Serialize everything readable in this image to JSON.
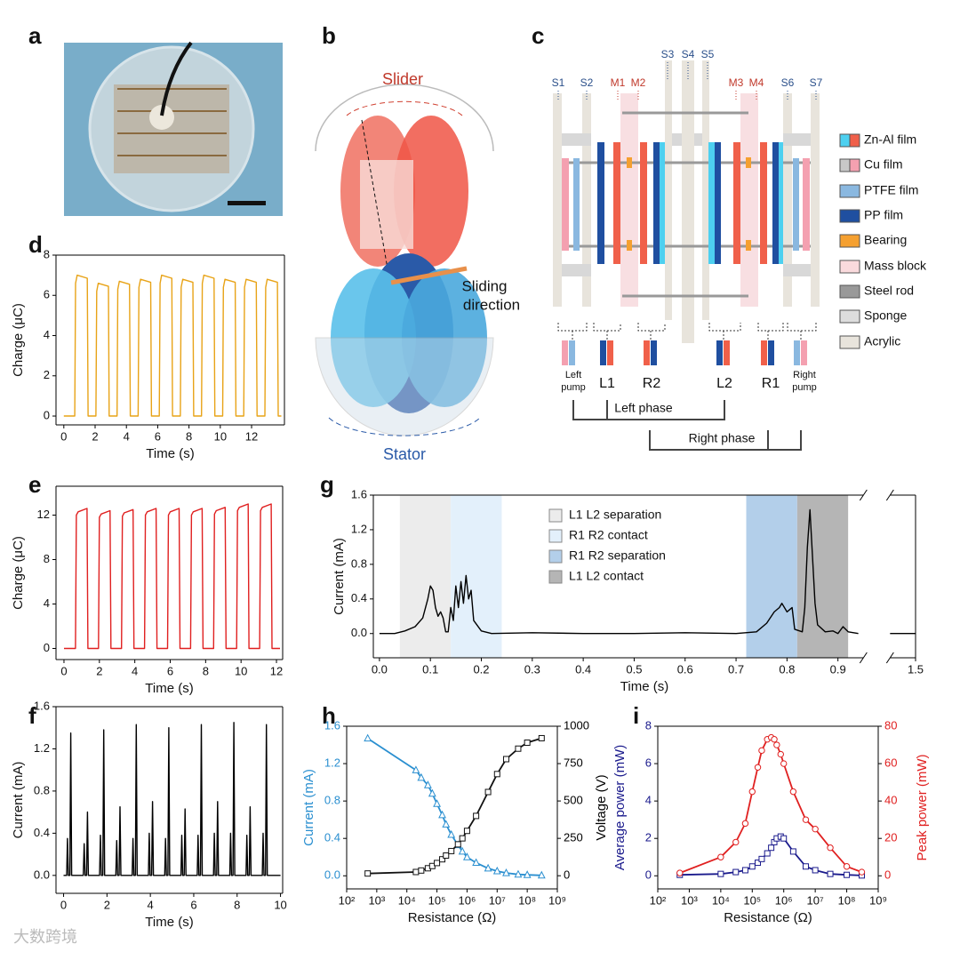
{
  "panel_labels": [
    "a",
    "b",
    "c",
    "d",
    "e",
    "f",
    "g",
    "h",
    "i"
  ],
  "diagram_b": {
    "slider": "Slider",
    "sliding_direction": [
      "Sliding",
      "direction"
    ],
    "stator": "Stator"
  },
  "diagram_c": {
    "top_labels": [
      "S1",
      "S2",
      "M1",
      "M2",
      "S3",
      "S4",
      "S5",
      "M3",
      "M4",
      "S6",
      "S7"
    ],
    "legend": [
      "Zn-Al film",
      "Cu film",
      "PTFE film",
      "PP film",
      "Bearing",
      "Mass block",
      "Steel rod",
      "Sponge",
      "Acrylic"
    ],
    "bottom_labels": [
      [
        "Left",
        "pump"
      ],
      [
        "L1"
      ],
      [
        "R2"
      ],
      [
        "L2"
      ],
      [
        "R1"
      ],
      [
        "Right",
        "pump"
      ]
    ],
    "phases": [
      "Left phase",
      "Right phase"
    ]
  },
  "watermark": "大数跨境",
  "chart_data": [
    {
      "type": "line",
      "x_label": "Time (s)",
      "y_label": "Charge (μC)",
      "color": "#e8a317",
      "xlim": [
        -0.5,
        14.1
      ],
      "xticks": [
        0,
        2,
        4,
        6,
        8,
        10,
        12
      ],
      "ylim": [
        -0.44,
        8
      ],
      "yticks": [
        0,
        2,
        4,
        6,
        8
      ],
      "x": [
        0,
        0.7,
        0.75,
        0.85,
        1.5,
        1.55,
        2.05,
        2.1,
        2.2,
        2.85,
        2.9,
        3.4,
        3.45,
        3.55,
        4.2,
        4.25,
        4.75,
        4.8,
        4.9,
        5.55,
        5.6,
        6.1,
        6.15,
        6.25,
        6.9,
        6.95,
        7.45,
        7.5,
        7.6,
        8.25,
        8.3,
        8.8,
        8.85,
        8.95,
        9.6,
        9.65,
        10.15,
        10.2,
        10.3,
        10.95,
        11.0,
        11.5,
        11.55,
        11.65,
        12.3,
        12.35,
        12.85,
        12.9,
        13.0,
        13.65,
        13.7,
        13.9
      ],
      "values": [
        0,
        0,
        6.6,
        7.0,
        6.85,
        0,
        0,
        6.2,
        6.6,
        6.45,
        0,
        0,
        6.3,
        6.7,
        6.55,
        0,
        0,
        6.4,
        6.8,
        6.65,
        0,
        0,
        6.6,
        7.0,
        6.85,
        0,
        0,
        6.4,
        6.8,
        6.65,
        0,
        0,
        6.6,
        7.0,
        6.85,
        0,
        0,
        6.4,
        6.8,
        6.65,
        0,
        0,
        6.4,
        6.8,
        6.65,
        0,
        0,
        6.4,
        6.8,
        6.65,
        0,
        0
      ]
    },
    {
      "type": "line",
      "x_label": "Time (s)",
      "y_label": "Charge (μC)",
      "color": "#e02020",
      "xlim": [
        -0.45,
        12.35
      ],
      "xticks": [
        0,
        2,
        4,
        6,
        8,
        10,
        12
      ],
      "ylim": [
        -1,
        14.6
      ],
      "yticks": [
        0,
        4,
        8,
        12
      ],
      "x": [
        0,
        0.65,
        0.7,
        0.8,
        1.3,
        1.35,
        1.95,
        2.0,
        2.1,
        2.6,
        2.65,
        3.25,
        3.3,
        3.4,
        3.9,
        3.95,
        4.55,
        4.6,
        4.7,
        5.2,
        5.25,
        5.85,
        5.9,
        6.0,
        6.5,
        6.55,
        7.15,
        7.2,
        7.3,
        7.8,
        7.85,
        8.45,
        8.5,
        8.6,
        9.1,
        9.15,
        9.75,
        9.8,
        9.9,
        10.4,
        10.45,
        11.05,
        11.1,
        11.2,
        11.7,
        11.75,
        12.2
      ],
      "values": [
        0,
        0,
        12.0,
        12.3,
        12.6,
        0,
        0,
        11.8,
        12.1,
        12.4,
        0,
        0,
        11.9,
        12.2,
        12.5,
        0,
        0,
        12.0,
        12.3,
        12.6,
        0,
        0,
        12.0,
        12.3,
        12.6,
        0,
        0,
        12.0,
        12.3,
        12.6,
        0,
        0,
        12.1,
        12.4,
        12.7,
        0,
        0,
        12.4,
        12.7,
        13.0,
        0,
        0,
        12.4,
        12.7,
        13.0,
        0,
        0
      ]
    },
    {
      "type": "line",
      "x_label": "Time (s)",
      "y_label": "Current (mA)",
      "color": "#000000",
      "xlim": [
        -0.35,
        10.1
      ],
      "xticks": [
        0,
        2,
        4,
        6,
        8,
        10
      ],
      "ylim": [
        -0.17,
        1.6
      ],
      "yticks": [
        {
          "value": 0,
          "label": "0.0"
        },
        0.4,
        0.8,
        1.2,
        1.6
      ],
      "x": [
        0,
        0.14,
        0.18,
        0.22,
        0.29,
        0.33,
        0.37,
        0.91,
        0.95,
        0.99,
        1.06,
        1.1,
        1.14,
        1.66,
        1.7,
        1.74,
        1.81,
        1.85,
        1.89,
        2.41,
        2.45,
        2.49,
        2.56,
        2.6,
        2.64,
        3.16,
        3.2,
        3.24,
        3.31,
        3.35,
        3.39,
        3.91,
        3.95,
        3.99,
        4.06,
        4.1,
        4.14,
        4.66,
        4.7,
        4.74,
        4.81,
        4.85,
        4.89,
        5.41,
        5.45,
        5.49,
        5.56,
        5.6,
        5.64,
        6.16,
        6.2,
        6.24,
        6.31,
        6.35,
        6.39,
        6.91,
        6.95,
        6.99,
        7.06,
        7.1,
        7.14,
        7.66,
        7.7,
        7.74,
        7.81,
        7.85,
        7.89,
        8.41,
        8.45,
        8.49,
        8.56,
        8.6,
        8.64,
        9.16,
        9.2,
        9.24,
        9.31,
        9.35,
        9.39,
        10
      ],
      "values": [
        0,
        0,
        0.35,
        0,
        0,
        1.35,
        0,
        0,
        0.3,
        0,
        0,
        0.6,
        0,
        0,
        0.38,
        0,
        0,
        1.38,
        0,
        0,
        0.33,
        0,
        0,
        0.65,
        0,
        0,
        0.35,
        0,
        0,
        1.43,
        0,
        0,
        0.4,
        0,
        0,
        0.7,
        0,
        0,
        0.35,
        0,
        0,
        1.4,
        0,
        0,
        0.38,
        0,
        0,
        0.63,
        0,
        0,
        0.38,
        0,
        0,
        1.43,
        0,
        0,
        0.4,
        0,
        0,
        0.7,
        0,
        0,
        0.4,
        0,
        0,
        1.45,
        0,
        0,
        0.38,
        0,
        0,
        0.65,
        0,
        0,
        0.4,
        0,
        0,
        1.43,
        0,
        0
      ]
    },
    {
      "type": "line",
      "x_label": "Time (s)",
      "y_label": "Current (mA)",
      "color": "#000000",
      "xlim": [
        -0.012,
        1.5
      ],
      "xbreak": [
        0.95,
        1.45
      ],
      "xticks": [
        {
          "value": 0,
          "label": "0.0"
        },
        0.1,
        0.2,
        0.3,
        0.4,
        0.5,
        0.6,
        0.7,
        0.8,
        0.9,
        1.5
      ],
      "ylim": [
        -0.28,
        1.6
      ],
      "yticks": [
        {
          "value": 0,
          "label": "0.0"
        },
        0.4,
        0.8,
        1.2,
        1.6
      ],
      "bands": [
        {
          "name": "L1 L2 separation",
          "color": "#ececec",
          "range": [
            0.04,
            0.14
          ]
        },
        {
          "name": "R1 R2 contact",
          "color": "#e3f0fb",
          "range": [
            0.14,
            0.24
          ]
        },
        {
          "name": "R1 R2 separation",
          "color": "#b3cfea",
          "range": [
            0.72,
            0.82
          ]
        },
        {
          "name": "L1 L2 contact",
          "color": "#b5b5b5",
          "range": [
            0.82,
            0.92
          ]
        }
      ],
      "x": [
        0,
        0.03,
        0.05,
        0.07,
        0.085,
        0.095,
        0.1,
        0.105,
        0.11,
        0.115,
        0.12,
        0.125,
        0.13,
        0.135,
        0.14,
        0.145,
        0.15,
        0.155,
        0.16,
        0.165,
        0.17,
        0.175,
        0.18,
        0.185,
        0.2,
        0.22,
        0.3,
        0.4,
        0.5,
        0.6,
        0.7,
        0.74,
        0.76,
        0.775,
        0.785,
        0.79,
        0.8,
        0.81,
        0.815,
        0.83,
        0.835,
        0.84,
        0.845,
        0.85,
        0.855,
        0.86,
        0.875,
        0.89,
        0.9,
        0.91,
        0.92,
        0.94,
        0.95,
        1.45,
        1.5
      ],
      "values": [
        0,
        0,
        0.03,
        0.08,
        0.18,
        0.4,
        0.55,
        0.5,
        0.3,
        0.2,
        0.25,
        0.18,
        0.02,
        0.02,
        0.3,
        0.15,
        0.55,
        0.3,
        0.6,
        0.35,
        0.67,
        0.4,
        0.5,
        0.15,
        0.03,
        0,
        0.01,
        0,
        0,
        0.01,
        0,
        0.02,
        0.12,
        0.25,
        0.3,
        0.35,
        0.25,
        0.3,
        0.05,
        0.02,
        0.3,
        1.0,
        1.43,
        0.9,
        0.35,
        0.1,
        0.02,
        0.03,
        0,
        0.08,
        0.02,
        0,
        null,
        0,
        0
      ]
    },
    {
      "type": "line",
      "xscale": "log",
      "x_label": "Resistance (Ω)",
      "y_label": "Current (mA)",
      "y_label_color": "#2a8fd0",
      "y2_label": "Voltage (V)",
      "y2_label_color": "#000000",
      "xlim": [
        100,
        1000000000
      ],
      "xticks": [
        {
          "value": 100,
          "label": "10²"
        },
        {
          "value": 1000,
          "label": "10³"
        },
        {
          "value": 10000,
          "label": "10⁴"
        },
        {
          "value": 100000,
          "label": "10⁵"
        },
        {
          "value": 1000000,
          "label": "10⁶"
        },
        {
          "value": 10000000,
          "label": "10⁷"
        },
        {
          "value": 100000000,
          "label": "10⁸"
        },
        {
          "value": 1000000000,
          "label": "10⁹"
        }
      ],
      "ylim": [
        -0.14,
        1.6
      ],
      "yticks": [
        {
          "value": 0,
          "label": "0.0"
        },
        0.4,
        0.8,
        1.2,
        1.6
      ],
      "y2lim": [
        -88,
        1000
      ],
      "y2ticks": [
        0,
        250,
        500,
        750,
        1000
      ],
      "x": [
        500,
        20000,
        30000,
        50000,
        70000,
        100000,
        150000,
        200000,
        300000,
        500000,
        700000,
        1000000,
        2000000,
        5000000,
        10000000,
        20000000,
        50000000,
        100000000,
        300000000
      ],
      "series": [
        {
          "color": "#2a8fd0",
          "marker": "triangle",
          "values": [
            1.47,
            1.13,
            1.05,
            0.97,
            0.88,
            0.77,
            0.65,
            0.55,
            0.44,
            0.33,
            0.26,
            0.2,
            0.14,
            0.08,
            0.05,
            0.03,
            0.015,
            0.01,
            0.005
          ]
        },
        {
          "color": "#111111",
          "marker": "square",
          "axis": "y2",
          "values": [
            15,
            25,
            35,
            50,
            65,
            85,
            110,
            135,
            165,
            210,
            250,
            300,
            400,
            560,
            680,
            780,
            850,
            890,
            920
          ]
        }
      ]
    },
    {
      "type": "line",
      "xscale": "log",
      "x_label": "Resistance (Ω)",
      "y_label": "Average power (mW)",
      "y_label_color": "#1a1a8c",
      "y2_label": "Peak power (mW)",
      "y2_label_color": "#e02020",
      "xlim": [
        100,
        1000000000
      ],
      "xticks": [
        {
          "value": 100,
          "label": "10²"
        },
        {
          "value": 1000,
          "label": "10³"
        },
        {
          "value": 10000,
          "label": "10⁴"
        },
        {
          "value": 100000,
          "label": "10⁵"
        },
        {
          "value": 1000000,
          "label": "10⁶"
        },
        {
          "value": 10000000,
          "label": "10⁷"
        },
        {
          "value": 100000000,
          "label": "10⁸"
        },
        {
          "value": 1000000000,
          "label": "10⁹"
        }
      ],
      "ylim": [
        -0.7,
        8
      ],
      "yticks": [
        0,
        2,
        4,
        6,
        8
      ],
      "y2lim": [
        -7,
        80
      ],
      "y2ticks": [
        0,
        20,
        40,
        60,
        80
      ],
      "x": [
        500,
        10000,
        30000,
        60000,
        100000,
        150000,
        200000,
        300000,
        400000,
        500000,
        600000,
        800000,
        1000000,
        2000000,
        5000000,
        10000000,
        30000000,
        100000000,
        300000000
      ],
      "series": [
        {
          "color": "#1a1a8c",
          "marker": "square",
          "values": [
            0.05,
            0.1,
            0.2,
            0.3,
            0.5,
            0.7,
            0.9,
            1.2,
            1.5,
            1.8,
            2.0,
            2.1,
            2.0,
            1.3,
            0.5,
            0.3,
            0.1,
            0.05,
            0.02
          ]
        },
        {
          "color": "#e02020",
          "marker": "circle",
          "axis": "y2",
          "values": [
            1.5,
            10,
            18,
            28,
            45,
            58,
            67,
            73,
            74,
            73,
            70,
            65,
            60,
            45,
            30,
            25,
            15,
            5,
            2
          ]
        }
      ]
    }
  ]
}
